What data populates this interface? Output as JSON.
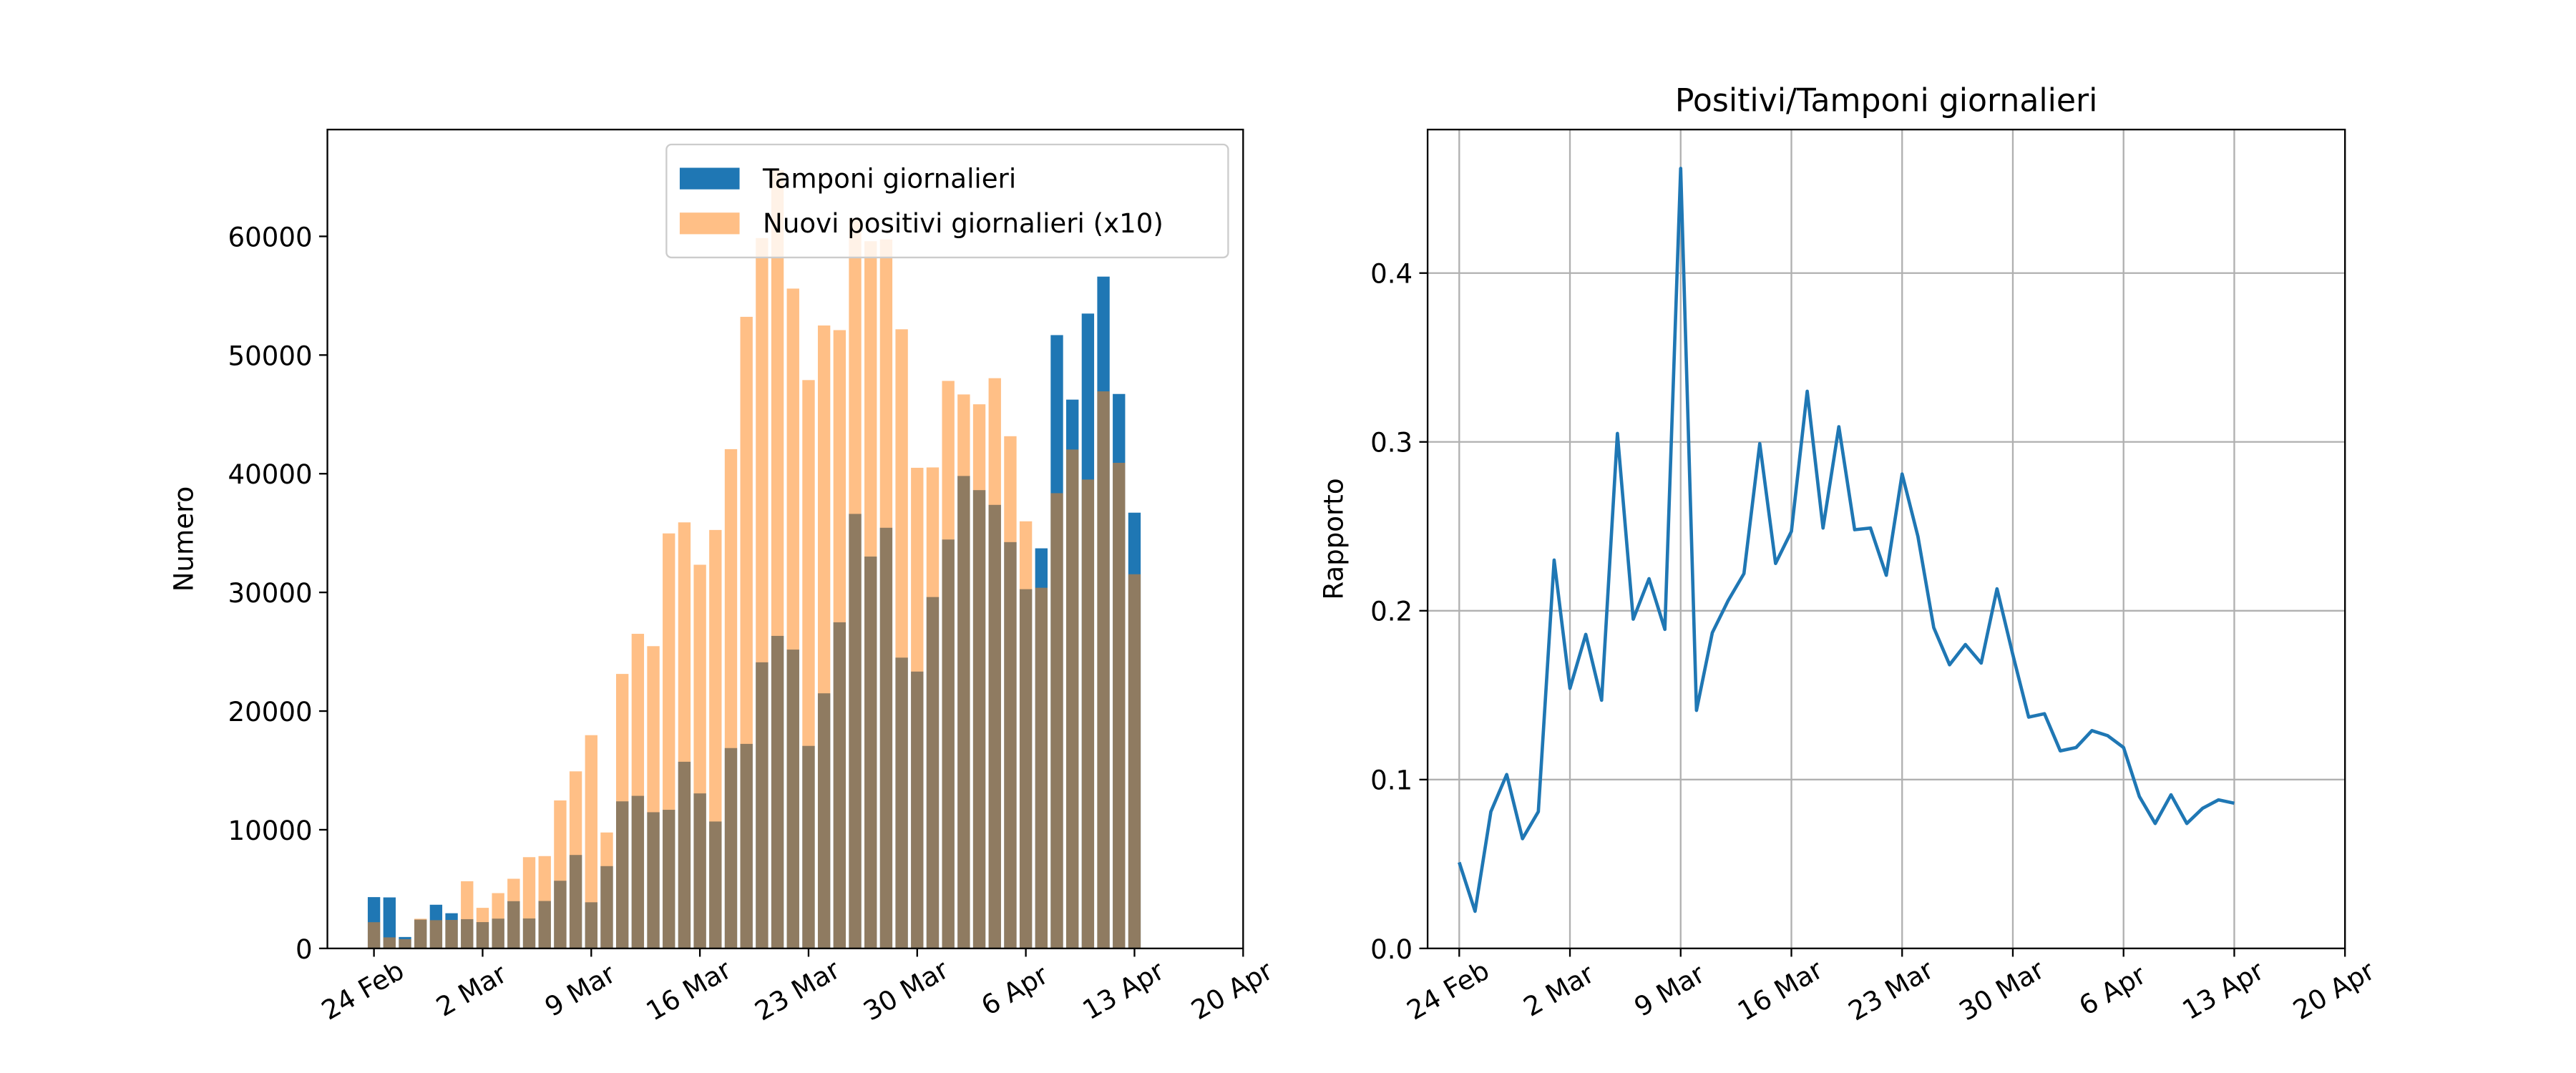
{
  "chart_data": [
    {
      "type": "bar",
      "ylabel": "Numero",
      "x": [
        "24 Feb",
        "25 Feb",
        "26 Feb",
        "27 Feb",
        "28 Feb",
        "29 Feb",
        "1 Mar",
        "2 Mar",
        "3 Mar",
        "4 Mar",
        "5 Mar",
        "6 Mar",
        "7 Mar",
        "8 Mar",
        "9 Mar",
        "10 Mar",
        "11 Mar",
        "12 Mar",
        "13 Mar",
        "14 Mar",
        "15 Mar",
        "16 Mar",
        "17 Mar",
        "18 Mar",
        "19 Mar",
        "20 Mar",
        "21 Mar",
        "22 Mar",
        "23 Mar",
        "24 Mar",
        "25 Mar",
        "26 Mar",
        "27 Mar",
        "28 Mar",
        "29 Mar",
        "30 Mar",
        "31 Mar",
        "1 Apr",
        "2 Apr",
        "3 Apr",
        "4 Apr",
        "5 Apr",
        "6 Apr",
        "7 Apr",
        "8 Apr",
        "9 Apr",
        "10 Apr",
        "11 Apr",
        "12 Apr",
        "13 Apr"
      ],
      "series": [
        {
          "name": "Tamponi giornalieri",
          "color": "#1f77b4",
          "values": [
            4324,
            4299,
            964,
            2427,
            3681,
            2966,
            2466,
            2218,
            2511,
            3981,
            2525,
            3997,
            5703,
            7875,
            3889,
            6935,
            12393,
            12857,
            11477,
            11682,
            15729,
            13063,
            10695,
            16884,
            17236,
            24109,
            26336,
            25180,
            17066,
            21496,
            27481,
            36615,
            33019,
            35447,
            24504,
            23329,
            29609,
            34455,
            39809,
            38617,
            37375,
            34237,
            30271,
            33713,
            51680,
            46244,
            53495,
            56609,
            46720,
            36717
          ]
        },
        {
          "name": "Nuovi positivi giornalieri (x10)",
          "color": "#ff7f0e",
          "opacity": 0.5,
          "values": [
            2210,
            930,
            780,
            2500,
            2380,
            2400,
            5660,
            3420,
            4660,
            5870,
            7690,
            7780,
            12470,
            14920,
            17970,
            9770,
            23130,
            26510,
            25470,
            34970,
            35900,
            32330,
            35260,
            42070,
            53220,
            59860,
            65570,
            55600,
            47890,
            52490,
            52100,
            61530,
            59590,
            59740,
            52170,
            40500,
            40530,
            47820,
            46680,
            45850,
            48050,
            43160,
            35990,
            30390,
            38360,
            42040,
            39510,
            46940,
            40920,
            31530
          ]
        }
      ],
      "xlim": [
        "21 Feb",
        "20 Apr"
      ],
      "xticks": [
        "24 Feb",
        "2 Mar",
        "9 Mar",
        "16 Mar",
        "23 Mar",
        "30 Mar",
        "6 Apr",
        "13 Apr",
        "20 Apr"
      ],
      "ylim": [
        0,
        69000
      ],
      "yticks": [
        0,
        10000,
        20000,
        30000,
        40000,
        50000,
        60000
      ],
      "grid": false,
      "legend": "upper right"
    },
    {
      "type": "line",
      "title": "Positivi/Tamponi giornalieri",
      "ylabel": "Rapporto",
      "x": [
        "24 Feb",
        "25 Feb",
        "26 Feb",
        "27 Feb",
        "28 Feb",
        "29 Feb",
        "1 Mar",
        "2 Mar",
        "3 Mar",
        "4 Mar",
        "5 Mar",
        "6 Mar",
        "7 Mar",
        "8 Mar",
        "9 Mar",
        "10 Mar",
        "11 Mar",
        "12 Mar",
        "13 Mar",
        "14 Mar",
        "15 Mar",
        "16 Mar",
        "17 Mar",
        "18 Mar",
        "19 Mar",
        "20 Mar",
        "21 Mar",
        "22 Mar",
        "23 Mar",
        "24 Mar",
        "25 Mar",
        "26 Mar",
        "27 Mar",
        "28 Mar",
        "29 Mar",
        "30 Mar",
        "31 Mar",
        "1 Apr",
        "2 Apr",
        "3 Apr",
        "4 Apr",
        "5 Apr",
        "6 Apr",
        "7 Apr",
        "8 Apr",
        "9 Apr",
        "10 Apr",
        "11 Apr",
        "12 Apr",
        "13 Apr"
      ],
      "series": [
        {
          "color": "#1f77b4",
          "values": [
            0.051,
            0.022,
            0.081,
            0.103,
            0.065,
            0.081,
            0.23,
            0.154,
            0.186,
            0.147,
            0.305,
            0.195,
            0.219,
            0.189,
            0.462,
            0.141,
            0.187,
            0.206,
            0.222,
            0.299,
            0.228,
            0.247,
            0.33,
            0.249,
            0.309,
            0.248,
            0.249,
            0.221,
            0.281,
            0.244,
            0.19,
            0.168,
            0.18,
            0.169,
            0.213,
            0.174,
            0.137,
            0.139,
            0.117,
            0.119,
            0.129,
            0.126,
            0.119,
            0.09,
            0.074,
            0.091,
            0.074,
            0.083,
            0.088,
            0.086
          ]
        }
      ],
      "xlim": [
        "22 Feb",
        "20 Apr"
      ],
      "xticks": [
        "24 Feb",
        "2 Mar",
        "9 Mar",
        "16 Mar",
        "23 Mar",
        "30 Mar",
        "6 Apr",
        "13 Apr",
        "20 Apr"
      ],
      "ylim": [
        0,
        0.485
      ],
      "yticks": [
        {
          "value": 0,
          "label": "0.0"
        },
        0.1,
        0.2,
        0.3,
        0.4
      ],
      "grid": true
    }
  ]
}
